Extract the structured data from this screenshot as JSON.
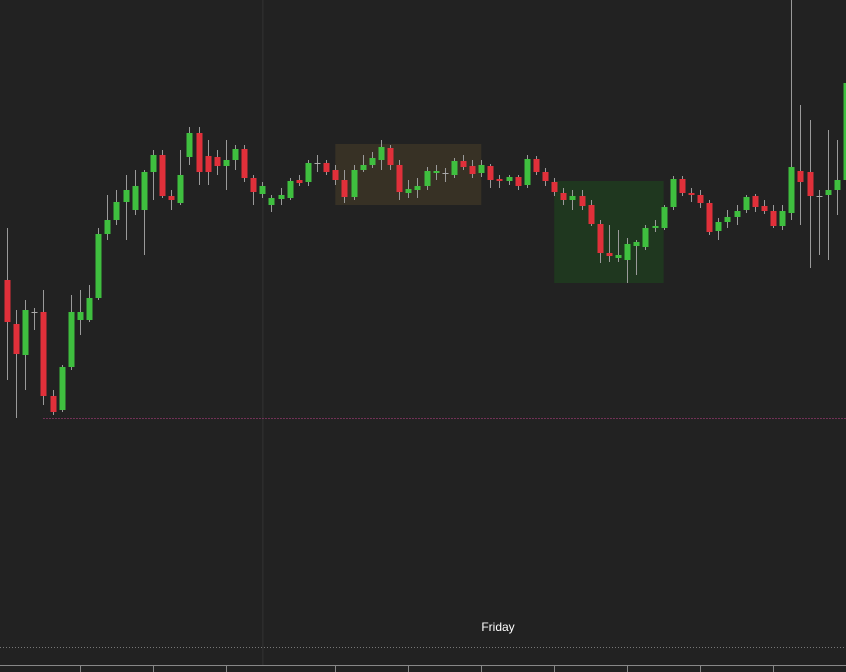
{
  "chart_data": {
    "type": "candlestick",
    "day_label": "Friday",
    "up_color": "#3fbf3f",
    "down_color": "#e0303a",
    "ylim": [
      0,
      672
    ],
    "xticks": [
      8,
      16,
      24,
      36,
      44,
      52,
      60,
      68,
      76,
      84
    ],
    "session_break": 28,
    "level_line": {
      "value": 254,
      "color": "#c0408a"
    },
    "zones": [
      {
        "start": 36,
        "end": 52,
        "high": 528,
        "low": 467,
        "color": "#3a3326"
      },
      {
        "start": 60,
        "end": 72,
        "high": 491,
        "low": 389,
        "color": "#1f3a1f"
      }
    ],
    "open": [
      392,
      348,
      317,
      360,
      360,
      276,
      262,
      305,
      352,
      352,
      374,
      438,
      452,
      470,
      462,
      462,
      500,
      517,
      476,
      469,
      515,
      539,
      516,
      515,
      506,
      512,
      523,
      494,
      478,
      467,
      473,
      474,
      492,
      490,
      509,
      509,
      502,
      492,
      475,
      502,
      507,
      512,
      524,
      507,
      479,
      482,
      486,
      499,
      499,
      497,
      511,
      506,
      499,
      506,
      493,
      491,
      495,
      487,
      513,
      500,
      490,
      479,
      472,
      476,
      467,
      448,
      419,
      414,
      412,
      426,
      425,
      444,
      444,
      465,
      493,
      479,
      477,
      469,
      441,
      450,
      455,
      462,
      476,
      466,
      461,
      446,
      459,
      501,
      500,
      476,
      477,
      482,
      492
    ],
    "high": [
      444,
      362,
      372,
      364,
      382,
      282,
      307,
      377,
      382,
      387,
      444,
      477,
      482,
      497,
      502,
      502,
      522,
      522,
      482,
      522,
      545,
      545,
      532,
      522,
      532,
      527,
      527,
      497,
      490,
      477,
      484,
      494,
      497,
      512,
      517,
      512,
      507,
      502,
      507,
      517,
      520,
      532,
      527,
      512,
      492,
      494,
      505,
      507,
      504,
      514,
      517,
      512,
      512,
      508,
      497,
      497,
      497,
      517,
      516,
      504,
      494,
      484,
      482,
      482,
      472,
      452,
      447,
      442,
      434,
      432,
      447,
      452,
      467,
      496,
      496,
      484,
      482,
      472,
      454,
      462,
      467,
      477,
      478,
      472,
      467,
      467,
      672,
      567,
      552,
      482,
      542,
      532,
      589
    ],
    "low": [
      292,
      254,
      282,
      342,
      267,
      257,
      260,
      302,
      337,
      350,
      372,
      432,
      447,
      432,
      457,
      417,
      472,
      474,
      462,
      467,
      507,
      487,
      487,
      497,
      482,
      502,
      490,
      467,
      474,
      460,
      467,
      472,
      486,
      486,
      500,
      497,
      487,
      469,
      472,
      500,
      504,
      502,
      502,
      472,
      474,
      474,
      482,
      492,
      490,
      494,
      502,
      494,
      495,
      484,
      484,
      487,
      482,
      484,
      497,
      486,
      476,
      467,
      462,
      462,
      446,
      409,
      410,
      410,
      389,
      397,
      422,
      440,
      442,
      462,
      476,
      470,
      464,
      437,
      432,
      444,
      447,
      459,
      460,
      458,
      444,
      442,
      452,
      447,
      404,
      417,
      412,
      457,
      482
    ],
    "close": [
      350,
      318,
      362,
      360,
      276,
      260,
      305,
      360,
      360,
      374,
      438,
      452,
      470,
      482,
      486,
      500,
      517,
      476,
      472,
      497,
      539,
      500,
      500,
      506,
      512,
      523,
      494,
      480,
      486,
      474,
      477,
      491,
      489,
      509,
      509,
      500,
      492,
      475,
      502,
      507,
      514,
      525,
      507,
      480,
      483,
      486,
      501,
      501,
      499,
      511,
      505,
      498,
      507,
      492,
      491,
      495,
      486,
      513,
      500,
      491,
      480,
      472,
      476,
      466,
      448,
      419,
      416,
      417,
      428,
      430,
      444,
      446,
      465,
      493,
      479,
      477,
      469,
      440,
      450,
      455,
      461,
      475,
      465,
      461,
      446,
      461,
      505,
      490,
      476,
      476,
      482,
      492,
      589
    ]
  }
}
